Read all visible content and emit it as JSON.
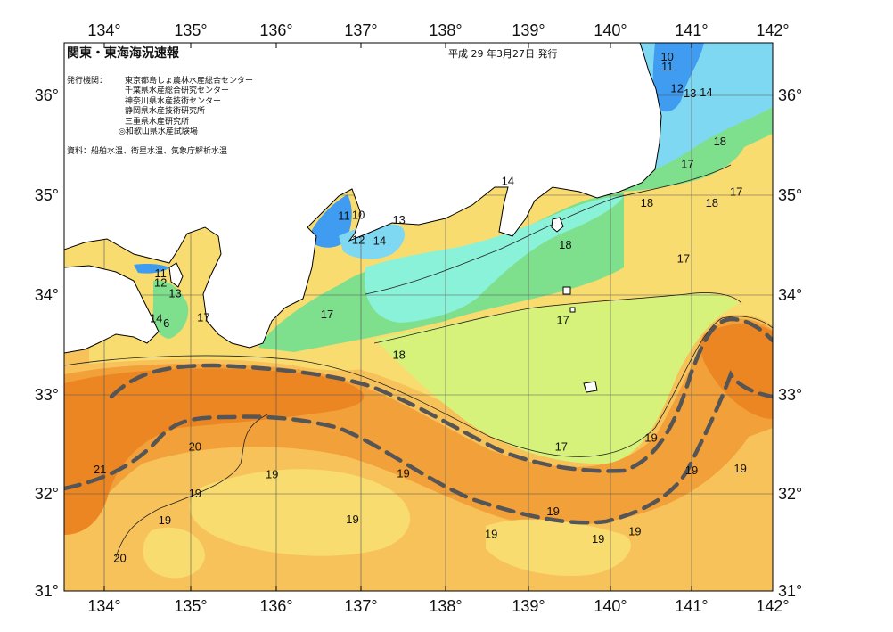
{
  "header": {
    "title": "関東・東海海況速報",
    "issued": "平成 29 年3月27日 発行",
    "publisher_label": "発行機関：",
    "publishers": [
      "東京都島しょ農林水産総合センター",
      "千葉県水産総合研究センター",
      "神奈川県水産技術センター",
      "静岡県水産技術研究所",
      "三重県水産研究所",
      "◎和歌山県水産試験場"
    ],
    "source": "資料：船舶水温、衛星水温、気象庁解析水温"
  },
  "axes": {
    "lon_labels": [
      "134°",
      "135°",
      "136°",
      "137°",
      "138°",
      "139°",
      "140°",
      "141°",
      "142°"
    ],
    "lat_labels": [
      "36°",
      "35°",
      "34°",
      "33°",
      "32°",
      "31°"
    ]
  },
  "isotherm_labels": [
    {
      "t": "10",
      "lon": 140.7,
      "lat": 36.35
    },
    {
      "t": "11",
      "lon": 140.7,
      "lat": 36.25
    },
    {
      "t": "12",
      "lon": 140.82,
      "lat": 36.03
    },
    {
      "t": "13",
      "lon": 140.98,
      "lat": 35.98
    },
    {
      "t": "14",
      "lon": 141.18,
      "lat": 35.99
    },
    {
      "t": "18",
      "lon": 141.35,
      "lat": 35.5
    },
    {
      "t": "17",
      "lon": 140.95,
      "lat": 35.27
    },
    {
      "t": "17",
      "lon": 141.55,
      "lat": 34.99
    },
    {
      "t": "18",
      "lon": 141.25,
      "lat": 34.88
    },
    {
      "t": "18",
      "lon": 140.45,
      "lat": 34.88
    },
    {
      "t": "14",
      "lon": 138.75,
      "lat": 35.1
    },
    {
      "t": "11",
      "lon": 136.8,
      "lat": 34.75
    },
    {
      "t": "10",
      "lon": 136.97,
      "lat": 34.76
    },
    {
      "t": "13",
      "lon": 137.45,
      "lat": 34.71
    },
    {
      "t": "12",
      "lon": 136.97,
      "lat": 34.51
    },
    {
      "t": "14",
      "lon": 137.22,
      "lat": 34.5
    },
    {
      "t": "18",
      "lon": 139.45,
      "lat": 34.46
    },
    {
      "t": "17",
      "lon": 140.9,
      "lat": 34.32
    },
    {
      "t": "11",
      "lon": 134.65,
      "lat": 34.17
    },
    {
      "t": "12",
      "lon": 134.65,
      "lat": 34.08
    },
    {
      "t": "13",
      "lon": 134.82,
      "lat": 33.97
    },
    {
      "t": "14",
      "lon": 134.6,
      "lat": 33.72
    },
    {
      "t": "6",
      "lon": 134.72,
      "lat": 33.67
    },
    {
      "t": "17",
      "lon": 135.15,
      "lat": 33.73
    },
    {
      "t": "17",
      "lon": 136.6,
      "lat": 33.76
    },
    {
      "t": "17",
      "lon": 139.42,
      "lat": 33.7
    },
    {
      "t": "18",
      "lon": 137.45,
      "lat": 33.35
    },
    {
      "t": "17",
      "lon": 139.4,
      "lat": 32.43
    },
    {
      "t": "19",
      "lon": 140.5,
      "lat": 32.52
    },
    {
      "t": "19",
      "lon": 141.0,
      "lat": 32.19
    },
    {
      "t": "19",
      "lon": 141.6,
      "lat": 32.21
    },
    {
      "t": "20",
      "lon": 135.05,
      "lat": 32.43
    },
    {
      "t": "21",
      "lon": 133.95,
      "lat": 32.2
    },
    {
      "t": "19",
      "lon": 135.95,
      "lat": 32.15
    },
    {
      "t": "19",
      "lon": 137.5,
      "lat": 32.16
    },
    {
      "t": "19",
      "lon": 135.05,
      "lat": 31.96
    },
    {
      "t": "19",
      "lon": 136.9,
      "lat": 31.7
    },
    {
      "t": "19",
      "lon": 139.3,
      "lat": 31.78
    },
    {
      "t": "19",
      "lon": 134.7,
      "lat": 31.69
    },
    {
      "t": "19",
      "lon": 138.55,
      "lat": 31.55
    },
    {
      "t": "19",
      "lon": 140.3,
      "lat": 31.58
    },
    {
      "t": "19",
      "lon": 139.85,
      "lat": 31.5
    },
    {
      "t": "20",
      "lon": 134.18,
      "lat": 31.31
    }
  ],
  "colors": {
    "water_cold": "#3f9cf1",
    "water_cool": "#7fd8f2",
    "water_mint": "#8af2d8",
    "water_green": "#7ee08c",
    "water_lime": "#d7f27a",
    "water_yellow": "#f9dc70",
    "water_light_orange": "#f8c25a",
    "water_orange": "#f2a03a",
    "water_deep_orange": "#ec8622",
    "land": "#ffffff",
    "kuroshio_axis": "#555555"
  }
}
